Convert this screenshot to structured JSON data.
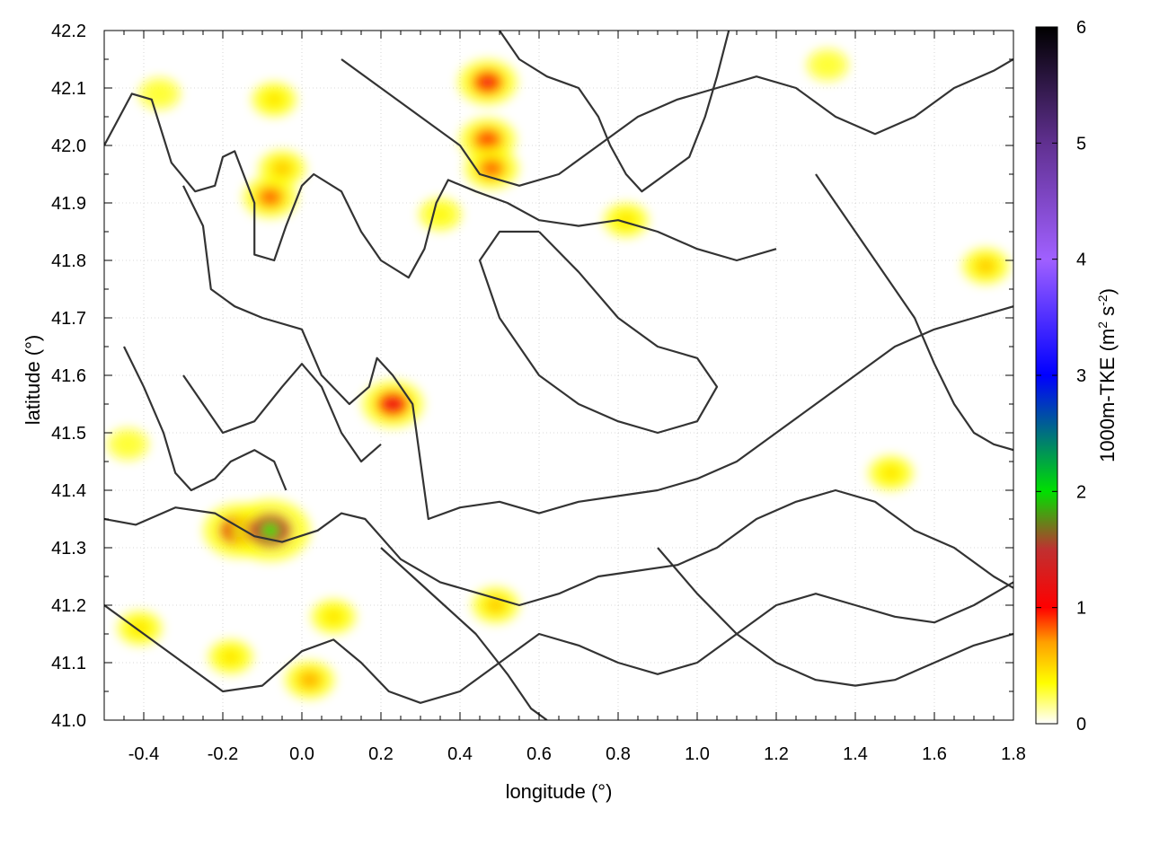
{
  "chart_data": {
    "type": "heatmap",
    "title": "",
    "xlabel": "longitude (°)",
    "ylabel": "latitude (°)",
    "colorbar_label_main": "1000m-TKE (m",
    "colorbar_label_sup1": "2",
    "colorbar_label_mid": " s",
    "colorbar_label_sup2": "-2",
    "colorbar_label_end": ")",
    "xlim": [
      -0.5,
      1.8
    ],
    "ylim": [
      41.0,
      42.2
    ],
    "xticks": [
      -0.4,
      -0.2,
      0.0,
      0.2,
      0.4,
      0.6,
      0.8,
      1.0,
      1.2,
      1.4,
      1.6,
      1.8
    ],
    "xtick_labels": [
      "-0.4",
      "-0.2",
      "0.0",
      "0.2",
      "0.4",
      "0.6",
      "0.8",
      "1.0",
      "1.2",
      "1.4",
      "1.6",
      "1.8"
    ],
    "yticks": [
      41.0,
      41.1,
      41.2,
      41.3,
      41.4,
      41.5,
      41.6,
      41.7,
      41.8,
      41.9,
      42.0,
      42.1,
      42.2
    ],
    "ytick_labels": [
      "41.0",
      "41.1",
      "41.2",
      "41.3",
      "41.4",
      "41.5",
      "41.6",
      "41.7",
      "41.8",
      "41.9",
      "42.0",
      "42.1",
      "42.2"
    ],
    "colorbar_range": [
      0,
      6
    ],
    "colorbar_ticks": [
      0,
      1,
      2,
      3,
      4,
      5,
      6
    ],
    "colorbar_tick_labels": [
      "0",
      "1",
      "2",
      "3",
      "4",
      "5",
      "6"
    ],
    "colormap": [
      {
        "v": 0.0,
        "c": "#ffffff"
      },
      {
        "v": 0.35,
        "c": "#ffff00"
      },
      {
        "v": 0.7,
        "c": "#ffa000"
      },
      {
        "v": 1.0,
        "c": "#ff0000"
      },
      {
        "v": 1.5,
        "c": "#c03030"
      },
      {
        "v": 2.0,
        "c": "#00e000"
      },
      {
        "v": 3.0,
        "c": "#0000ff"
      },
      {
        "v": 4.0,
        "c": "#a060ff"
      },
      {
        "v": 5.0,
        "c": "#603090"
      },
      {
        "v": 6.0,
        "c": "#000000"
      }
    ],
    "grid": true,
    "tke_hotspots": [
      {
        "lon": -0.16,
        "lat": 41.33,
        "value": 1.6
      },
      {
        "lon": -0.08,
        "lat": 41.33,
        "value": 2.0
      },
      {
        "lon": 0.23,
        "lat": 41.55,
        "value": 1.2
      },
      {
        "lon": 0.47,
        "lat": 42.11,
        "value": 1.1
      },
      {
        "lon": 0.47,
        "lat": 42.01,
        "value": 1.0
      },
      {
        "lon": 0.48,
        "lat": 41.96,
        "value": 0.9
      },
      {
        "lon": -0.08,
        "lat": 41.91,
        "value": 0.9
      },
      {
        "lon": -0.05,
        "lat": 41.96,
        "value": 0.6
      },
      {
        "lon": -0.07,
        "lat": 42.08,
        "value": 0.5
      },
      {
        "lon": 0.02,
        "lat": 41.07,
        "value": 0.7
      },
      {
        "lon": -0.41,
        "lat": 41.16,
        "value": 0.5
      },
      {
        "lon": -0.18,
        "lat": 41.11,
        "value": 0.5
      },
      {
        "lon": 0.08,
        "lat": 41.18,
        "value": 0.5
      },
      {
        "lon": 0.49,
        "lat": 41.2,
        "value": 0.6
      },
      {
        "lon": 0.82,
        "lat": 41.87,
        "value": 0.5
      },
      {
        "lon": 1.73,
        "lat": 41.79,
        "value": 0.6
      },
      {
        "lon": 1.49,
        "lat": 41.43,
        "value": 0.5
      },
      {
        "lon": -0.44,
        "lat": 41.48,
        "value": 0.35
      },
      {
        "lon": 0.35,
        "lat": 41.88,
        "value": 0.4
      },
      {
        "lon": -0.36,
        "lat": 42.09,
        "value": 0.35
      },
      {
        "lon": 1.33,
        "lat": 42.14,
        "value": 0.35
      }
    ],
    "contour_color": "#333333",
    "contours": [
      [
        [
          -0.5,
          42.0
        ],
        [
          -0.43,
          42.09
        ],
        [
          -0.38,
          42.08
        ],
        [
          -0.33,
          41.97
        ],
        [
          -0.27,
          41.92
        ],
        [
          -0.22,
          41.93
        ],
        [
          -0.2,
          41.98
        ],
        [
          -0.17,
          41.99
        ],
        [
          -0.12,
          41.9
        ],
        [
          -0.12,
          41.81
        ],
        [
          -0.07,
          41.8
        ],
        [
          -0.04,
          41.86
        ],
        [
          0.0,
          41.93
        ],
        [
          0.03,
          41.95
        ],
        [
          0.1,
          41.92
        ],
        [
          0.15,
          41.85
        ],
        [
          0.2,
          41.8
        ],
        [
          0.27,
          41.77
        ],
        [
          0.31,
          41.82
        ],
        [
          0.34,
          41.9
        ],
        [
          0.37,
          41.94
        ],
        [
          0.44,
          41.92
        ],
        [
          0.52,
          41.9
        ],
        [
          0.6,
          41.87
        ],
        [
          0.7,
          41.86
        ],
        [
          0.8,
          41.87
        ],
        [
          0.9,
          41.85
        ],
        [
          1.0,
          41.82
        ],
        [
          1.1,
          41.8
        ],
        [
          1.2,
          41.82
        ]
      ],
      [
        [
          -0.3,
          41.93
        ],
        [
          -0.25,
          41.86
        ],
        [
          -0.23,
          41.75
        ],
        [
          -0.17,
          41.72
        ],
        [
          -0.1,
          41.7
        ],
        [
          0.0,
          41.68
        ],
        [
          0.05,
          41.6
        ],
        [
          0.12,
          41.55
        ],
        [
          0.17,
          41.58
        ],
        [
          0.19,
          41.63
        ],
        [
          0.23,
          41.6
        ],
        [
          0.28,
          41.55
        ],
        [
          0.3,
          41.45
        ],
        [
          0.32,
          41.35
        ],
        [
          0.4,
          41.37
        ],
        [
          0.5,
          41.38
        ],
        [
          0.6,
          41.36
        ],
        [
          0.7,
          41.38
        ],
        [
          0.8,
          41.39
        ],
        [
          0.9,
          41.4
        ],
        [
          1.0,
          41.42
        ],
        [
          1.1,
          41.45
        ],
        [
          1.2,
          41.5
        ],
        [
          1.3,
          41.55
        ],
        [
          1.4,
          41.6
        ],
        [
          1.5,
          41.65
        ],
        [
          1.6,
          41.68
        ],
        [
          1.7,
          41.7
        ],
        [
          1.8,
          41.72
        ]
      ],
      [
        [
          -0.5,
          41.35
        ],
        [
          -0.42,
          41.34
        ],
        [
          -0.32,
          41.37
        ],
        [
          -0.22,
          41.36
        ],
        [
          -0.12,
          41.32
        ],
        [
          -0.05,
          41.31
        ],
        [
          0.04,
          41.33
        ],
        [
          0.1,
          41.36
        ],
        [
          0.16,
          41.35
        ],
        [
          0.25,
          41.28
        ],
        [
          0.35,
          41.24
        ],
        [
          0.45,
          41.22
        ],
        [
          0.55,
          41.2
        ],
        [
          0.65,
          41.22
        ],
        [
          0.75,
          41.25
        ],
        [
          0.85,
          41.26
        ],
        [
          0.95,
          41.27
        ],
        [
          1.05,
          41.3
        ],
        [
          1.15,
          41.35
        ],
        [
          1.25,
          41.38
        ],
        [
          1.35,
          41.4
        ],
        [
          1.45,
          41.38
        ],
        [
          1.55,
          41.33
        ],
        [
          1.65,
          41.3
        ],
        [
          1.75,
          41.25
        ],
        [
          1.8,
          41.23
        ]
      ],
      [
        [
          -0.5,
          41.2
        ],
        [
          -0.4,
          41.15
        ],
        [
          -0.3,
          41.1
        ],
        [
          -0.2,
          41.05
        ],
        [
          -0.1,
          41.06
        ],
        [
          0.0,
          41.12
        ],
        [
          0.08,
          41.14
        ],
        [
          0.15,
          41.1
        ],
        [
          0.22,
          41.05
        ],
        [
          0.3,
          41.03
        ],
        [
          0.4,
          41.05
        ],
        [
          0.5,
          41.1
        ],
        [
          0.6,
          41.15
        ],
        [
          0.7,
          41.13
        ],
        [
          0.8,
          41.1
        ],
        [
          0.9,
          41.08
        ],
        [
          1.0,
          41.1
        ],
        [
          1.1,
          41.15
        ],
        [
          1.2,
          41.2
        ],
        [
          1.3,
          41.22
        ],
        [
          1.4,
          41.2
        ],
        [
          1.5,
          41.18
        ],
        [
          1.6,
          41.17
        ],
        [
          1.7,
          41.2
        ],
        [
          1.8,
          41.24
        ]
      ],
      [
        [
          0.1,
          42.15
        ],
        [
          0.2,
          42.1
        ],
        [
          0.3,
          42.05
        ],
        [
          0.4,
          42.0
        ],
        [
          0.45,
          41.95
        ],
        [
          0.55,
          41.93
        ],
        [
          0.65,
          41.95
        ],
        [
          0.75,
          42.0
        ],
        [
          0.85,
          42.05
        ],
        [
          0.95,
          42.08
        ],
        [
          1.05,
          42.1
        ],
        [
          1.15,
          42.12
        ],
        [
          1.25,
          42.1
        ],
        [
          1.35,
          42.05
        ],
        [
          1.45,
          42.02
        ],
        [
          1.55,
          42.05
        ],
        [
          1.65,
          42.1
        ],
        [
          1.75,
          42.13
        ],
        [
          1.8,
          42.15
        ]
      ],
      [
        [
          0.6,
          41.85
        ],
        [
          0.7,
          41.78
        ],
        [
          0.8,
          41.7
        ],
        [
          0.9,
          41.65
        ],
        [
          1.0,
          41.63
        ],
        [
          1.05,
          41.58
        ],
        [
          1.0,
          41.52
        ],
        [
          0.9,
          41.5
        ],
        [
          0.8,
          41.52
        ],
        [
          0.7,
          41.55
        ],
        [
          0.6,
          41.6
        ],
        [
          0.55,
          41.65
        ],
        [
          0.5,
          41.7
        ],
        [
          0.45,
          41.8
        ],
        [
          0.5,
          41.85
        ],
        [
          0.6,
          41.85
        ]
      ],
      [
        [
          0.9,
          41.3
        ],
        [
          1.0,
          41.22
        ],
        [
          1.1,
          41.15
        ],
        [
          1.2,
          41.1
        ],
        [
          1.3,
          41.07
        ],
        [
          1.4,
          41.06
        ],
        [
          1.5,
          41.07
        ],
        [
          1.6,
          41.1
        ],
        [
          1.7,
          41.13
        ],
        [
          1.8,
          41.15
        ]
      ],
      [
        [
          -0.3,
          41.6
        ],
        [
          -0.25,
          41.55
        ],
        [
          -0.2,
          41.5
        ],
        [
          -0.12,
          41.52
        ],
        [
          -0.05,
          41.58
        ],
        [
          0.0,
          41.62
        ],
        [
          0.05,
          41.58
        ],
        [
          0.1,
          41.5
        ],
        [
          0.15,
          41.45
        ],
        [
          0.2,
          41.48
        ]
      ],
      [
        [
          1.3,
          41.95
        ],
        [
          1.35,
          41.9
        ],
        [
          1.4,
          41.85
        ],
        [
          1.45,
          41.8
        ],
        [
          1.5,
          41.75
        ],
        [
          1.55,
          41.7
        ],
        [
          1.6,
          41.62
        ],
        [
          1.65,
          41.55
        ],
        [
          1.7,
          41.5
        ],
        [
          1.75,
          41.48
        ],
        [
          1.8,
          41.47
        ]
      ],
      [
        [
          0.2,
          41.3
        ],
        [
          0.28,
          41.25
        ],
        [
          0.36,
          41.2
        ],
        [
          0.44,
          41.15
        ],
        [
          0.52,
          41.08
        ],
        [
          0.58,
          41.02
        ],
        [
          0.62,
          41.0
        ]
      ],
      [
        [
          0.5,
          42.2
        ],
        [
          0.55,
          42.15
        ],
        [
          0.62,
          42.12
        ],
        [
          0.7,
          42.1
        ],
        [
          0.75,
          42.05
        ],
        [
          0.78,
          42.0
        ],
        [
          0.82,
          41.95
        ],
        [
          0.86,
          41.92
        ],
        [
          0.92,
          41.95
        ],
        [
          0.98,
          41.98
        ],
        [
          1.02,
          42.05
        ],
        [
          1.05,
          42.12
        ],
        [
          1.08,
          42.2
        ]
      ],
      [
        [
          -0.45,
          41.65
        ],
        [
          -0.4,
          41.58
        ],
        [
          -0.35,
          41.5
        ],
        [
          -0.32,
          41.43
        ],
        [
          -0.28,
          41.4
        ],
        [
          -0.22,
          41.42
        ],
        [
          -0.18,
          41.45
        ],
        [
          -0.12,
          41.47
        ],
        [
          -0.07,
          41.45
        ],
        [
          -0.04,
          41.4
        ]
      ]
    ]
  }
}
